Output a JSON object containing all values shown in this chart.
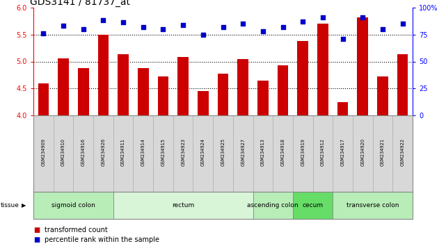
{
  "title": "GDS3141 / 81737_at",
  "samples": [
    "GSM234909",
    "GSM234910",
    "GSM234916",
    "GSM234926",
    "GSM234911",
    "GSM234914",
    "GSM234915",
    "GSM234923",
    "GSM234924",
    "GSM234925",
    "GSM234927",
    "GSM234913",
    "GSM234918",
    "GSM234919",
    "GSM234912",
    "GSM234917",
    "GSM234920",
    "GSM234921",
    "GSM234922"
  ],
  "bar_values": [
    4.6,
    5.06,
    4.88,
    5.5,
    5.13,
    4.88,
    4.72,
    5.08,
    4.45,
    4.78,
    5.05,
    4.65,
    4.93,
    5.38,
    5.7,
    4.25,
    5.82,
    4.72,
    5.14
  ],
  "dot_values": [
    76,
    83,
    80,
    88,
    86,
    82,
    80,
    84,
    75,
    82,
    85,
    78,
    82,
    87,
    91,
    71,
    91,
    80,
    85
  ],
  "ylim_left": [
    4.0,
    6.0
  ],
  "ylim_right": [
    0,
    100
  ],
  "yticks_left": [
    4.0,
    4.5,
    5.0,
    5.5,
    6.0
  ],
  "yticks_right": [
    0,
    25,
    50,
    75,
    100
  ],
  "ytick_labels_right": [
    "0",
    "25",
    "50",
    "75",
    "100%"
  ],
  "hlines": [
    4.5,
    5.0,
    5.5
  ],
  "bar_color": "#cc0000",
  "dot_color": "#0000cc",
  "tissue_groups": [
    {
      "label": "sigmoid colon",
      "start": 0,
      "end": 3,
      "color": "#b8edb8"
    },
    {
      "label": "rectum",
      "start": 4,
      "end": 10,
      "color": "#d8f5d8"
    },
    {
      "label": "ascending colon",
      "start": 11,
      "end": 12,
      "color": "#b8edb8"
    },
    {
      "label": "cecum",
      "start": 13,
      "end": 14,
      "color": "#66dd66"
    },
    {
      "label": "transverse colon",
      "start": 15,
      "end": 18,
      "color": "#b8edb8"
    }
  ],
  "sample_box_color": "#d8d8d8",
  "background_color": "#ffffff",
  "title_fontsize": 10,
  "tick_fontsize": 7,
  "sample_fontsize": 4.8,
  "tissue_fontsize": 6.5,
  "legend_fontsize": 7
}
